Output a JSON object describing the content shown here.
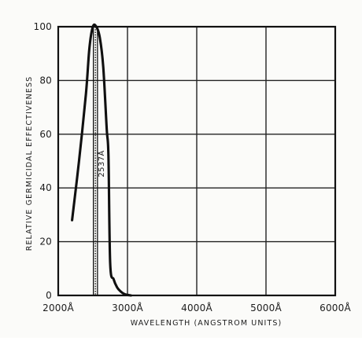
{
  "chart_data": {
    "type": "line",
    "title": "",
    "xlabel": "WAVELENGTH (ANGSTROM UNITS)",
    "ylabel": "RELATIVE GERMICIDAL EFFECTIVENESS",
    "xlim": [
      2000,
      6000
    ],
    "ylim": [
      0,
      100
    ],
    "grid": true,
    "x_ticks": [
      2000,
      3000,
      4000,
      5000,
      6000
    ],
    "x_tick_labels": [
      "2000Å",
      "3000Å",
      "4000Å",
      "5000Å",
      "6000Å"
    ],
    "y_ticks": [
      0,
      20,
      40,
      60,
      80,
      100
    ],
    "y_tick_labels": [
      "0",
      "20",
      "40",
      "60",
      "80",
      "100"
    ],
    "series": [
      {
        "x": [
          2200,
          2300,
          2400,
          2450,
          2500,
          2550,
          2600,
          2650,
          2700,
          2725,
          2750,
          2800,
          2850,
          2900,
          2950,
          3000,
          3050
        ],
        "y": [
          28,
          50,
          75,
          92,
          100,
          100,
          96,
          85,
          62,
          52,
          12,
          6,
          3,
          1.5,
          0.6,
          0.2,
          0
        ]
      }
    ],
    "reference_line": {
      "x": 2537,
      "label": "2537Å"
    }
  }
}
